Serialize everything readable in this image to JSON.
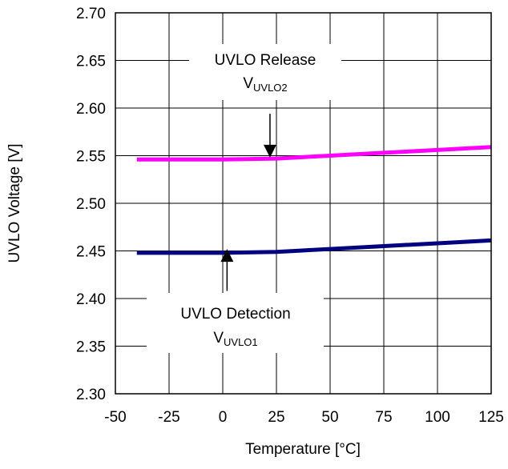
{
  "chart_data": {
    "type": "line",
    "xlabel": "Temperature [°C]",
    "ylabel": "UVLO Voltage [V]",
    "xlim": [
      -50,
      125
    ],
    "ylim": [
      2.3,
      2.7
    ],
    "xticks": [
      -50,
      -25,
      0,
      25,
      50,
      75,
      100,
      125
    ],
    "xtick_labels": [
      "-50",
      "-25",
      "0",
      "25",
      "50",
      "75",
      "100",
      "125"
    ],
    "yticks": [
      2.3,
      2.35,
      2.4,
      2.45,
      2.5,
      2.55,
      2.6,
      2.65,
      2.7
    ],
    "ytick_labels": [
      "2.30",
      "2.35",
      "2.40",
      "2.45",
      "2.50",
      "2.55",
      "2.60",
      "2.65",
      "2.70"
    ],
    "grid": true,
    "series": [
      {
        "color": "#ff00ff",
        "x": [
          -40,
          0,
          25,
          50,
          75,
          100,
          125
        ],
        "y": [
          2.546,
          2.546,
          2.547,
          2.55,
          2.553,
          2.556,
          2.559
        ]
      },
      {
        "color": "#000080",
        "x": [
          -40,
          0,
          25,
          50,
          75,
          100,
          125
        ],
        "y": [
          2.448,
          2.448,
          2.449,
          2.452,
          2.455,
          2.458,
          2.461
        ]
      }
    ],
    "annotations": [
      {
        "text": "UVLO Release",
        "sub_main": "V",
        "sub_script": "UVLO2",
        "arrow": "down",
        "arrow_x": 22,
        "arrow_from": 2.594,
        "arrow_to": 2.548
      },
      {
        "text": "UVLO Detection",
        "sub_main": "V",
        "sub_script": "UVLO1",
        "arrow": "up",
        "arrow_x": 2,
        "arrow_from": 2.408,
        "arrow_to": 2.452
      }
    ]
  }
}
